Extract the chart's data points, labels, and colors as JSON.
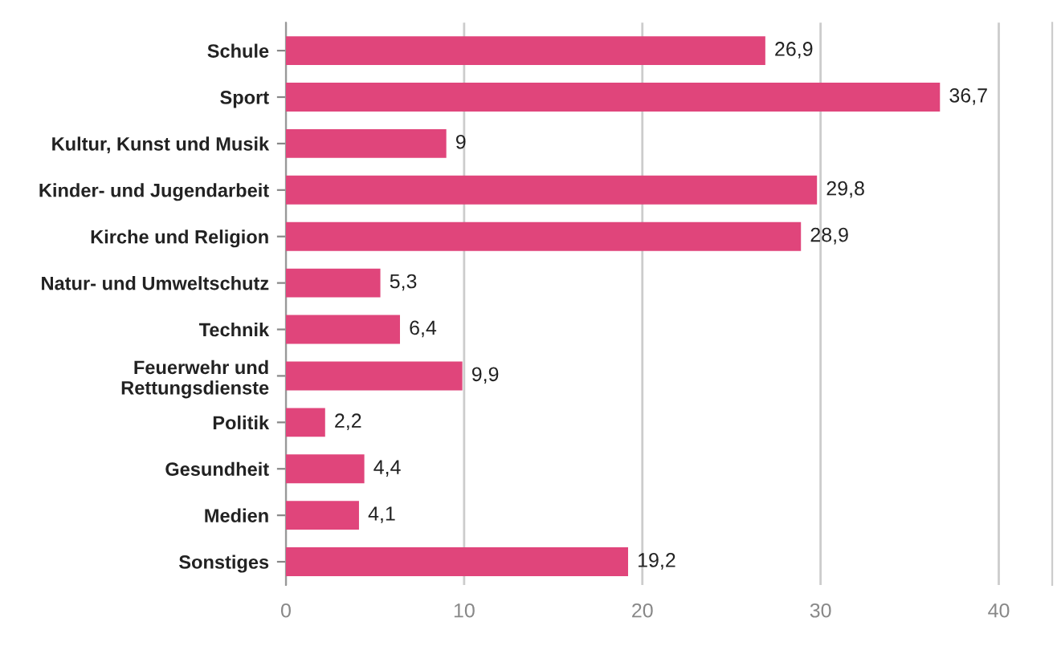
{
  "chart_data": {
    "type": "bar",
    "orientation": "horizontal",
    "categories": [
      "Schule",
      "Sport",
      "Kultur, Kunst und Musik",
      "Kinder- und Jugendarbeit",
      "Kirche und Religion",
      "Natur- und Umweltschutz",
      "Technik",
      "Feuerwehr und\nRettungsdienste",
      "Politik",
      "Gesundheit",
      "Medien",
      "Sonstiges"
    ],
    "values": [
      26.9,
      36.7,
      9,
      29.8,
      28.9,
      5.3,
      6.4,
      9.9,
      2.2,
      4.4,
      4.1,
      19.2
    ],
    "value_labels": [
      "26,9",
      "36,7",
      "9",
      "29,8",
      "28,9",
      "5,3",
      "6,4",
      "9,9",
      "2,2",
      "4,4",
      "4,1",
      "19,2"
    ],
    "color": "#e0457b",
    "xlim": [
      0,
      43
    ],
    "xticks": [
      0,
      10,
      20,
      30,
      40
    ],
    "grid": "x"
  }
}
